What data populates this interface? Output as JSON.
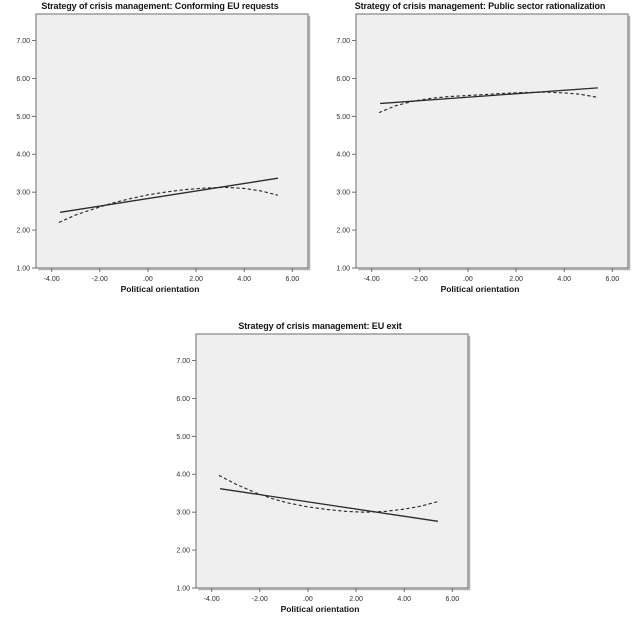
{
  "figure": {
    "background": "#ffffff",
    "description_visible_text_only": true
  },
  "styles": {
    "plot_bg": "#efefef",
    "frame_color": "#6e6e6e",
    "frame_shadow": "#b2b2b2",
    "line_color": "#2b2b2b",
    "text_color": "#2e2e2e",
    "title_color": "#141414"
  },
  "chart_data": [
    {
      "type": "line",
      "title": "Strategy of crisis management: Conforming EU requests",
      "xlabel": "Political orientation",
      "ylabel": "",
      "xlim": [
        -4.65,
        6.65
      ],
      "ylim": [
        1.0,
        7.7
      ],
      "grid": false,
      "legend": "none",
      "xticks": [
        -4,
        -2,
        0,
        2,
        4,
        6
      ],
      "xtick_labels": [
        "-4.00",
        "-2.00",
        ".00",
        "2.00",
        "4.00",
        "6.00"
      ],
      "yticks": [
        1,
        2,
        3,
        4,
        5,
        6,
        7
      ],
      "ytick_labels": [
        "1.00",
        "2.00",
        "3.00",
        "4.00",
        "5.00",
        "6.00",
        "7.00"
      ],
      "series": [
        {
          "name": "linear-trend",
          "style": "solid",
          "points": [
            [
              -3.65,
              2.47
            ],
            [
              5.4,
              3.37
            ]
          ]
        },
        {
          "name": "curved-trend",
          "style": "dashed",
          "points": [
            [
              -3.7,
              2.2
            ],
            [
              -3.0,
              2.4
            ],
            [
              -2.2,
              2.57
            ],
            [
              -1.5,
              2.71
            ],
            [
              -0.8,
              2.82
            ],
            [
              0.0,
              2.93
            ],
            [
              0.8,
              3.01
            ],
            [
              1.6,
              3.07
            ],
            [
              2.4,
              3.11
            ],
            [
              3.2,
              3.13
            ],
            [
              4.0,
              3.1
            ],
            [
              4.7,
              3.03
            ],
            [
              5.4,
              2.92
            ]
          ]
        }
      ]
    },
    {
      "type": "line",
      "title": "Strategy of crisis management: Public sector rationalization",
      "xlabel": "Political orientation",
      "ylabel": "",
      "xlim": [
        -4.65,
        6.65
      ],
      "ylim": [
        1.0,
        7.7
      ],
      "grid": false,
      "legend": "none",
      "xticks": [
        -4,
        -2,
        0,
        2,
        4,
        6
      ],
      "xtick_labels": [
        "-4.00",
        "-2.00",
        ".00",
        "2.00",
        "4.00",
        "6.00"
      ],
      "yticks": [
        1,
        2,
        3,
        4,
        5,
        6,
        7
      ],
      "ytick_labels": [
        "1.00",
        "2.00",
        "3.00",
        "4.00",
        "5.00",
        "6.00",
        "7.00"
      ],
      "series": [
        {
          "name": "linear-trend",
          "style": "solid",
          "points": [
            [
              -3.65,
              5.34
            ],
            [
              5.4,
              5.75
            ]
          ]
        },
        {
          "name": "curved-trend",
          "style": "dashed",
          "points": [
            [
              -3.7,
              5.1
            ],
            [
              -3.0,
              5.28
            ],
            [
              -2.2,
              5.41
            ],
            [
              -1.5,
              5.48
            ],
            [
              -0.8,
              5.52
            ],
            [
              0.0,
              5.55
            ],
            [
              0.8,
              5.58
            ],
            [
              1.6,
              5.61
            ],
            [
              2.4,
              5.63
            ],
            [
              3.2,
              5.64
            ],
            [
              4.0,
              5.62
            ],
            [
              4.7,
              5.58
            ],
            [
              5.4,
              5.5
            ]
          ]
        }
      ]
    },
    {
      "type": "line",
      "title": "Strategy of crisis management: EU exit",
      "xlabel": "Political orientation",
      "ylabel": "",
      "xlim": [
        -4.65,
        6.65
      ],
      "ylim": [
        1.0,
        7.7
      ],
      "grid": false,
      "legend": "none",
      "xticks": [
        -4,
        -2,
        0,
        2,
        4,
        6
      ],
      "xtick_labels": [
        "-4.00",
        "-2.00",
        ".00",
        "2.00",
        "4.00",
        "6.00"
      ],
      "yticks": [
        1,
        2,
        3,
        4,
        5,
        6,
        7
      ],
      "ytick_labels": [
        "1.00",
        "2.00",
        "3.00",
        "4.00",
        "5.00",
        "6.00",
        "7.00"
      ],
      "series": [
        {
          "name": "linear-trend",
          "style": "solid",
          "points": [
            [
              -3.65,
              3.62
            ],
            [
              5.4,
              2.76
            ]
          ]
        },
        {
          "name": "curved-trend",
          "style": "dashed",
          "points": [
            [
              -3.7,
              3.97
            ],
            [
              -3.0,
              3.74
            ],
            [
              -2.2,
              3.52
            ],
            [
              -1.5,
              3.36
            ],
            [
              -0.8,
              3.24
            ],
            [
              0.0,
              3.14
            ],
            [
              0.8,
              3.07
            ],
            [
              1.6,
              3.02
            ],
            [
              2.4,
              3.0
            ],
            [
              3.2,
              3.02
            ],
            [
              4.0,
              3.08
            ],
            [
              4.7,
              3.16
            ],
            [
              5.4,
              3.28
            ]
          ]
        }
      ]
    }
  ]
}
